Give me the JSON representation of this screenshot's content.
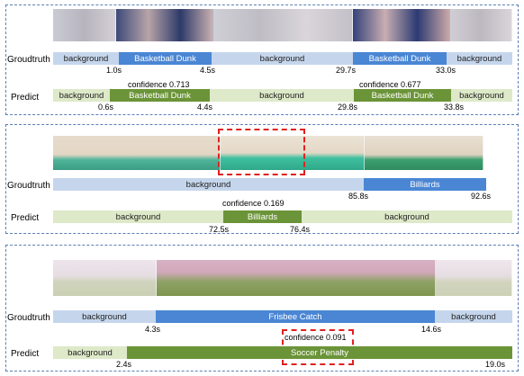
{
  "labels": {
    "groundtruth": "Groudtruth",
    "predict": "Predict"
  },
  "panel1": {
    "gt": [
      "background",
      "Basketball Dunk",
      "background",
      "Basketball Dunk",
      "background"
    ],
    "pred": [
      "background",
      "Basketball Dunk",
      "background",
      "Basketball Dunk",
      "background"
    ],
    "gt_times": [
      "1.0s",
      "4.5s",
      "29.7s",
      "33.0s"
    ],
    "pred_times": [
      "0.6s",
      "4.4s",
      "29.8s",
      "33.8s"
    ],
    "conf1": "confidence 0.713",
    "conf2": "confidence 0.677"
  },
  "panel2": {
    "gt": [
      "background",
      "Billiards"
    ],
    "pred": [
      "background",
      "Billiards",
      "background"
    ],
    "gt_times": [
      "85.8s",
      "92.6s"
    ],
    "pred_times": [
      "72.5s",
      "76.4s"
    ],
    "conf": "confidence 0.169"
  },
  "panel3": {
    "gt": [
      "background",
      "Frisbee Catch",
      "background"
    ],
    "pred": [
      "background",
      "Soccer Penalty"
    ],
    "gt_times": [
      "4.3s",
      "14.6s"
    ],
    "pred_times": [
      "2.4s",
      "19.0s"
    ],
    "conf": "confidence 0.091"
  },
  "colors": {
    "panel_border": "#5b7fb5",
    "gt_background": "#c5d6ec",
    "gt_action": "#4a86d4",
    "pred_background": "#dde9c8",
    "pred_action": "#6b9438",
    "highlight": "#e02020"
  }
}
